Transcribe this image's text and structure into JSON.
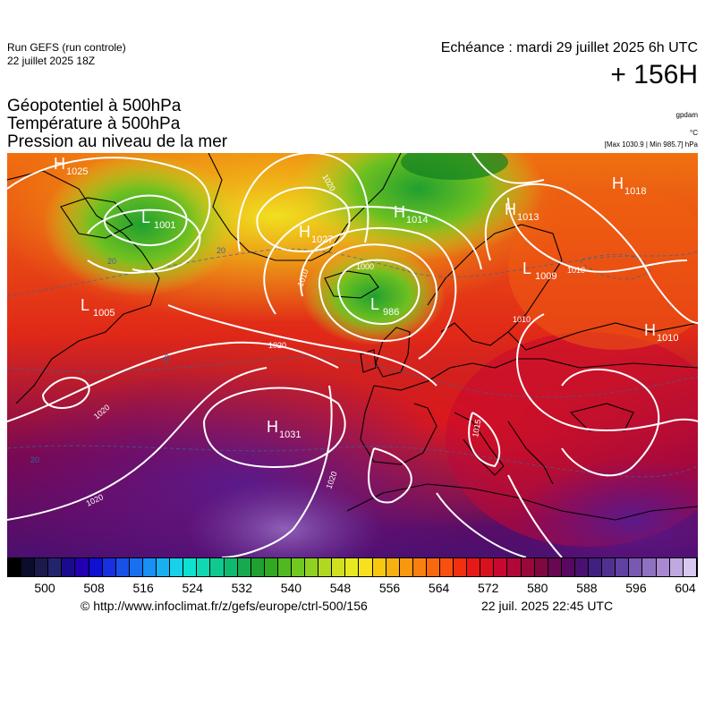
{
  "header": {
    "run_title": "Run GEFS (run controle)",
    "run_date": "22 juillet 2025 18Z",
    "echeance": "Echéance : mardi 29 juillet 2025 6h UTC",
    "lead_time": "+ 156H"
  },
  "parameters": [
    "Géopotentiel à 500hPa",
    "Température à 500hPa",
    "Pression au niveau de la mer"
  ],
  "units": {
    "geopotential": "gpdam",
    "temperature": "°C",
    "pressure_range": "[Max 1030.9 | Min 985.7] hPa"
  },
  "pressure_centers": [
    {
      "type": "H",
      "value": "1025"
    },
    {
      "type": "L",
      "value": "1001"
    },
    {
      "type": "H",
      "value": "1027"
    },
    {
      "type": "H",
      "value": "1014"
    },
    {
      "type": "H",
      "value": "1013"
    },
    {
      "type": "H",
      "value": "1018"
    },
    {
      "type": "L",
      "value": "1005"
    },
    {
      "type": "L",
      "value": "986"
    },
    {
      "type": "L",
      "value": "1009"
    },
    {
      "type": "H",
      "value": "1010"
    },
    {
      "type": "H",
      "value": "1031"
    }
  ],
  "isobar_labels": [
    "1020",
    "1010",
    "1000",
    "1020",
    "1020",
    "1020",
    "1020",
    "1010",
    "1010",
    "1015"
  ],
  "isotherm_labels": [
    "20",
    "20",
    "20",
    "20"
  ],
  "colorbar": {
    "labels": [
      "500",
      "508",
      "516",
      "524",
      "532",
      "540",
      "548",
      "556",
      "564",
      "572",
      "580",
      "588",
      "596",
      "604"
    ],
    "colors": [
      "#000000",
      "#0c0c2c",
      "#1a1a4c",
      "#24246c",
      "#1a0a8c",
      "#2000b0",
      "#1010d0",
      "#1830e0",
      "#1850e8",
      "#1870f0",
      "#1890f4",
      "#18b0f0",
      "#18d0e8",
      "#10e0d0",
      "#10d8b0",
      "#10c890",
      "#10b870",
      "#18a850",
      "#20a030",
      "#30a820",
      "#50b820",
      "#70c820",
      "#90d020",
      "#b0d820",
      "#d0e020",
      "#e8e820",
      "#f8e020",
      "#f8c810",
      "#f8b010",
      "#f89810",
      "#f88010",
      "#f86810",
      "#f85010",
      "#f03010",
      "#e81818",
      "#d81020",
      "#c80830",
      "#b00838",
      "#980838",
      "#800840",
      "#680850",
      "#580860",
      "#4a1070",
      "#402080",
      "#503090",
      "#6040a0",
      "#7858b0",
      "#9070c0",
      "#a888d0",
      "#c0a8e0",
      "#d8c8f0"
    ]
  },
  "footer": {
    "copyright": "© http://www.infoclimat.fr/z/gefs/europe/ctrl-500/156",
    "issued": "22 juil. 2025 22:45 UTC"
  }
}
